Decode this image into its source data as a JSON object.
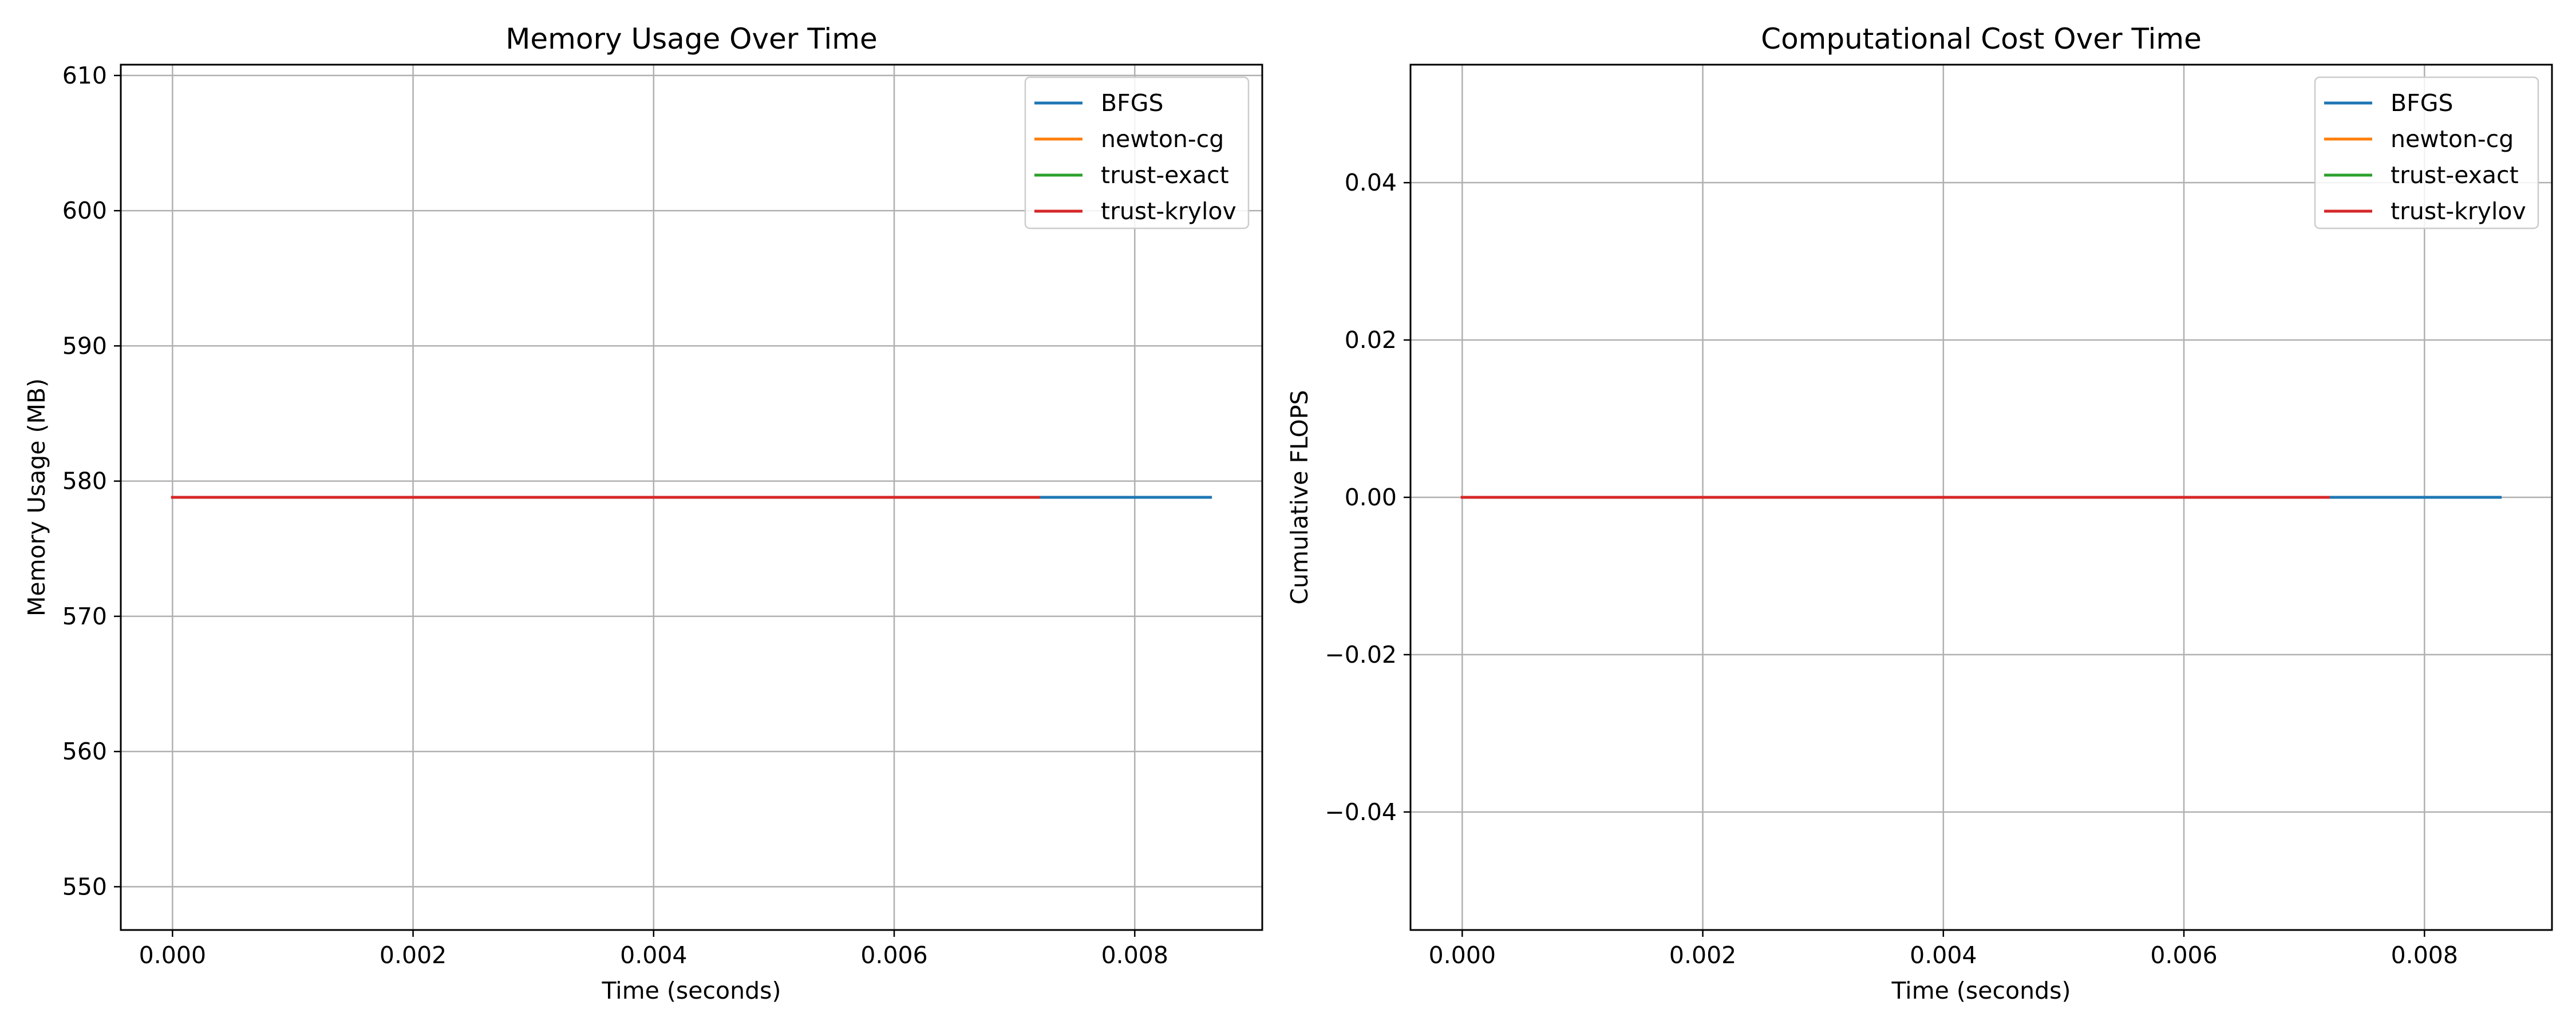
{
  "chart_data": [
    {
      "type": "line",
      "title": "Memory Usage Over Time",
      "xlabel": "Time (seconds)",
      "ylabel": "Memory Usage (MB)",
      "xlim": [
        -0.00043,
        0.00906
      ],
      "ylim": [
        546.8,
        610.8
      ],
      "xticks": [
        0.0,
        0.002,
        0.004,
        0.006,
        0.008
      ],
      "xtick_labels": [
        "0.000",
        "0.002",
        "0.004",
        "0.006",
        "0.008"
      ],
      "yticks": [
        550,
        560,
        570,
        580,
        590,
        600,
        610
      ],
      "ytick_labels": [
        "550",
        "560",
        "570",
        "580",
        "590",
        "600",
        "610"
      ],
      "grid": true,
      "legend_position": "top-right",
      "series": [
        {
          "name": "BFGS",
          "color": "#1f77b4",
          "x": [
            0.0,
            0.00863
          ],
          "y": [
            578.8,
            578.8
          ]
        },
        {
          "name": "newton-cg",
          "color": "#ff7f0e",
          "x": [
            0.0,
            0.0072
          ],
          "y": [
            578.8,
            578.8
          ]
        },
        {
          "name": "trust-exact",
          "color": "#2ca02c",
          "x": [
            0.0,
            0.0072
          ],
          "y": [
            578.8,
            578.8
          ]
        },
        {
          "name": "trust-krylov",
          "color": "#d62728",
          "x": [
            0.0,
            0.0072
          ],
          "y": [
            578.8,
            578.8
          ]
        }
      ]
    },
    {
      "type": "line",
      "title": "Computational Cost Over Time",
      "xlabel": "Time (seconds)",
      "ylabel": "Cumulative FLOPS",
      "xlim": [
        -0.00043,
        0.00906
      ],
      "ylim": [
        -0.055,
        0.055
      ],
      "xticks": [
        0.0,
        0.002,
        0.004,
        0.006,
        0.008
      ],
      "xtick_labels": [
        "0.000",
        "0.002",
        "0.004",
        "0.006",
        "0.008"
      ],
      "yticks": [
        -0.04,
        -0.02,
        0.0,
        0.02,
        0.04
      ],
      "ytick_labels": [
        "−0.04",
        "−0.02",
        "0.00",
        "0.02",
        "0.04"
      ],
      "grid": true,
      "legend_position": "top-right",
      "series": [
        {
          "name": "BFGS",
          "color": "#1f77b4",
          "x": [
            0.0,
            0.00863
          ],
          "y": [
            0.0,
            0.0
          ]
        },
        {
          "name": "newton-cg",
          "color": "#ff7f0e",
          "x": [
            0.0,
            0.0072
          ],
          "y": [
            0.0,
            0.0
          ]
        },
        {
          "name": "trust-exact",
          "color": "#2ca02c",
          "x": [
            0.0,
            0.0072
          ],
          "y": [
            0.0,
            0.0
          ]
        },
        {
          "name": "trust-krylov",
          "color": "#d62728",
          "x": [
            0.0,
            0.0072
          ],
          "y": [
            0.0,
            0.0
          ]
        }
      ]
    }
  ]
}
